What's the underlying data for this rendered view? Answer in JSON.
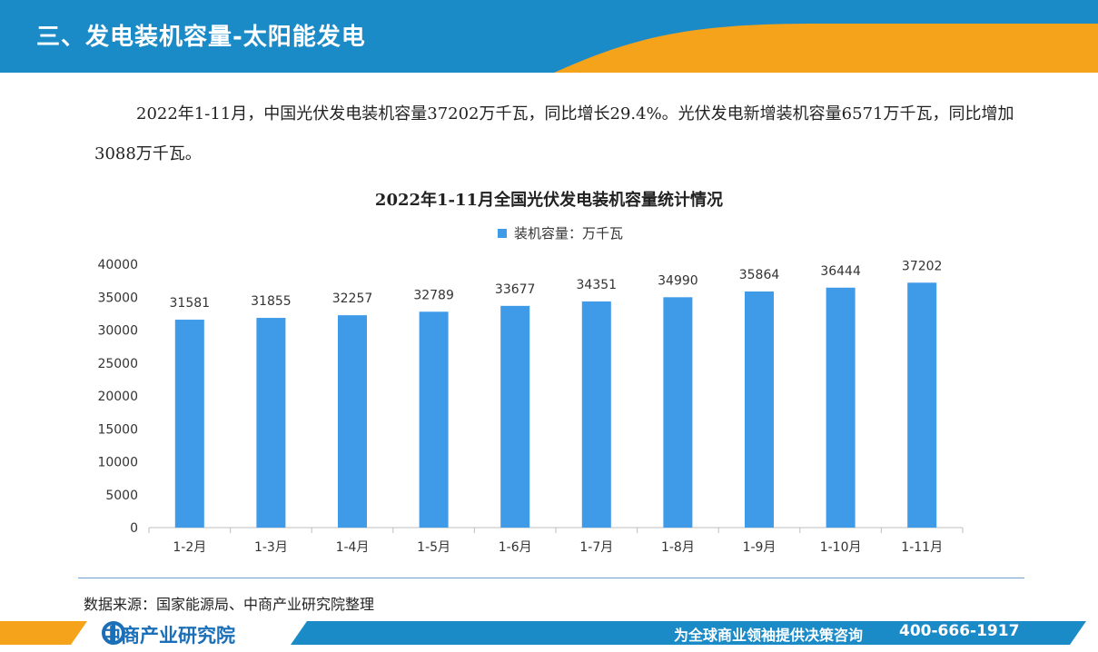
{
  "header": {
    "title": "三、发电装机容量-太阳能发电"
  },
  "intro": {
    "text": "2022年1-11月，中国光伏发电装机容量37202万千瓦，同比增长29.4%。光伏发电新增装机容量6571万千瓦，同比增加3088万千瓦。"
  },
  "chart_data": {
    "type": "bar",
    "title": "2022年1-11月全国光伏发电装机容量统计情况",
    "xlabel": "",
    "ylabel": "",
    "categories": [
      "1-2月",
      "1-3月",
      "1-4月",
      "1-5月",
      "1-6月",
      "1-7月",
      "1-8月",
      "1-9月",
      "1-10月",
      "1-11月"
    ],
    "series": [
      {
        "name": "装机容量：万千瓦",
        "values": [
          31581,
          31855,
          32257,
          32789,
          33677,
          34351,
          34990,
          35864,
          36444,
          37202
        ]
      }
    ],
    "ylim": [
      0,
      40000
    ],
    "yticks": [
      0,
      5000,
      10000,
      15000,
      20000,
      25000,
      30000,
      35000,
      40000
    ],
    "grid": false,
    "legend": "top-center",
    "data_labels": true,
    "bar_color": "#3f9ae8"
  },
  "source": {
    "text": "数据来源：国家能源局、中商产业研究院整理"
  },
  "footer": {
    "brand": "中商产业研究院",
    "slogan": "为全球商业领袖提供决策咨询",
    "phone": "400-666-1917"
  },
  "colors": {
    "header_blue": "#1b8bc8",
    "accent_orange": "#f5a31a",
    "footer_blue": "#1b8bc8"
  }
}
